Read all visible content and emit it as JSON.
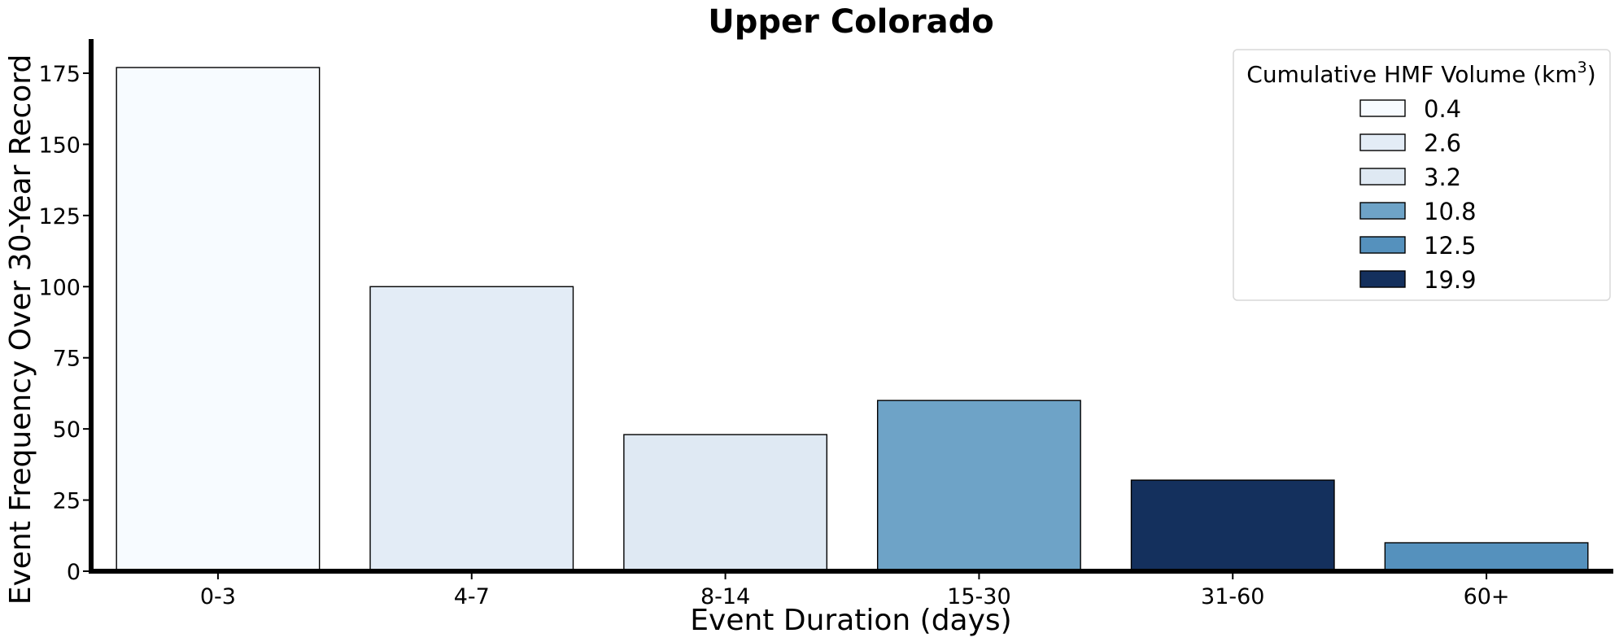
{
  "chart_data": {
    "type": "bar",
    "title": "Upper Colorado",
    "xlabel": "Event Duration (days)",
    "ylabel": "Event Frequency Over 30-Year Record",
    "categories": [
      "0-3",
      "4-7",
      "8-14",
      "15-30",
      "31-60",
      "60+"
    ],
    "values": [
      177,
      100,
      48,
      60,
      32,
      10
    ],
    "volumes": [
      "0.4",
      "2.6",
      "3.2",
      "10.8",
      "19.9",
      "12.5"
    ],
    "bar_colors": [
      "#f7fbff",
      "#e3ecf6",
      "#dfe9f3",
      "#6ea3c7",
      "#14305d",
      "#5591bd"
    ],
    "yticks": [
      0,
      25,
      50,
      75,
      100,
      125,
      150,
      175
    ],
    "ytick_labels": [
      "0",
      "25",
      "50",
      "75",
      "100",
      "125",
      "150",
      "175"
    ],
    "ylim": [
      0,
      187
    ],
    "grid": false,
    "legend": {
      "title": "Cumulative HMF Volume (km",
      "title_superscript": "3",
      "title_suffix": ")",
      "placement": "top-right",
      "entries": [
        {
          "label": "0.4",
          "color": "#f7fbff"
        },
        {
          "label": "2.6",
          "color": "#e3ecf6"
        },
        {
          "label": "3.2",
          "color": "#dfe9f3"
        },
        {
          "label": "10.8",
          "color": "#6ea3c7"
        },
        {
          "label": "12.5",
          "color": "#5591bd"
        },
        {
          "label": "19.9",
          "color": "#14305d"
        }
      ]
    }
  }
}
